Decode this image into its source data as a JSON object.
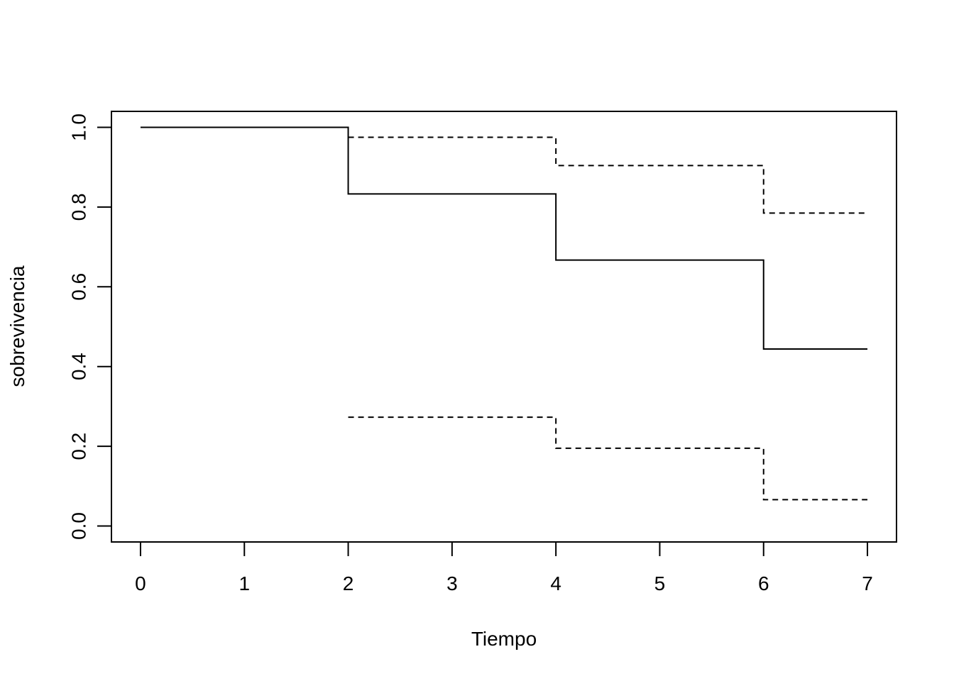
{
  "chart_data": {
    "type": "line",
    "title": "",
    "xlabel": "Tiempo",
    "ylabel": "sobrevivencia",
    "xlim": [
      -0.28,
      7.28
    ],
    "ylim": [
      -0.04,
      1.04
    ],
    "x_ticks": [
      0,
      1,
      2,
      3,
      4,
      5,
      6,
      7
    ],
    "x_tick_labels": [
      "0",
      "1",
      "2",
      "3",
      "4",
      "5",
      "6",
      "7"
    ],
    "y_ticks": [
      0.0,
      0.2,
      0.4,
      0.6,
      0.8,
      1.0
    ],
    "y_tick_labels": [
      "0.0",
      "0.2",
      "0.4",
      "0.6",
      "0.8",
      "1.0"
    ],
    "grid": false,
    "legend": "none",
    "step": true,
    "series": [
      {
        "style": "solid",
        "color": "#000000",
        "x": [
          0,
          2,
          4,
          6,
          7
        ],
        "y": [
          1.0,
          0.833,
          0.667,
          0.444,
          0.444
        ]
      },
      {
        "style": "dashed",
        "color": "#000000",
        "x": [
          2,
          4,
          6,
          7
        ],
        "y": [
          0.975,
          0.904,
          0.785,
          0.785
        ]
      },
      {
        "style": "dashed",
        "color": "#000000",
        "x": [
          2,
          4,
          6,
          7
        ],
        "y": [
          0.273,
          0.195,
          0.066,
          0.066
        ]
      }
    ]
  }
}
